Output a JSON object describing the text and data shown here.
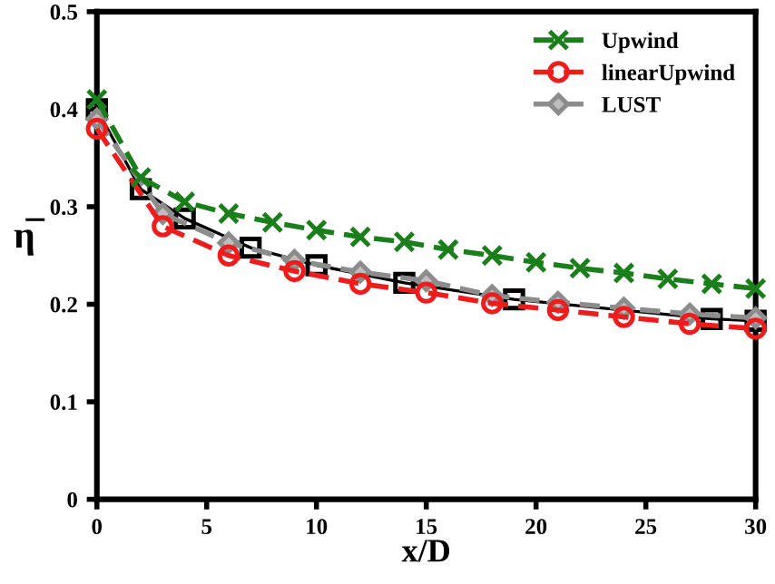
{
  "chart_data": {
    "type": "line",
    "xlabel": "x/D",
    "ylabel": "η̅",
    "xlim": [
      0,
      30
    ],
    "xticks": [
      0,
      5,
      10,
      15,
      20,
      25,
      30
    ],
    "ylim": [
      0,
      0.5
    ],
    "yticks": [
      0,
      0.1,
      0.2,
      0.3,
      0.4,
      0.5
    ],
    "grid": false,
    "legend": "top right",
    "series": [
      {
        "name": "Upwind",
        "color": "#1a7f1a",
        "marker": "cross",
        "line_style": "dashed",
        "x": [
          0,
          2,
          4,
          6,
          8,
          10,
          12,
          14,
          16,
          18,
          20,
          22,
          24,
          26,
          28,
          30
        ],
        "values": [
          0.41,
          0.33,
          0.305,
          0.293,
          0.284,
          0.276,
          0.269,
          0.264,
          0.256,
          0.25,
          0.243,
          0.237,
          0.232,
          0.226,
          0.221,
          0.216
        ]
      },
      {
        "name": "linearUpwind",
        "color": "#ee1c1c",
        "marker": "circle",
        "line_style": "dashed",
        "x": [
          0,
          3,
          6,
          9,
          12,
          15,
          18,
          21,
          24,
          27,
          30
        ],
        "values": [
          0.38,
          0.28,
          0.25,
          0.234,
          0.221,
          0.212,
          0.201,
          0.194,
          0.187,
          0.18,
          0.175
        ]
      },
      {
        "name": "LUST",
        "color": "#8c8c8c",
        "marker": "diamond",
        "line_style": "dashed",
        "x": [
          0,
          3,
          6,
          9,
          12,
          15,
          18,
          21,
          24,
          27,
          30
        ],
        "values": [
          0.39,
          0.293,
          0.263,
          0.245,
          0.233,
          0.224,
          0.209,
          0.202,
          0.196,
          0.19,
          0.186
        ]
      },
      {
        "color": "#000000",
        "marker": "square",
        "line_style": "solid",
        "x": [
          0,
          2,
          4,
          7,
          10,
          14,
          19,
          28,
          30
        ],
        "values": [
          0.4,
          0.318,
          0.288,
          0.258,
          0.24,
          0.222,
          0.205,
          0.185,
          0.183
        ]
      }
    ]
  }
}
